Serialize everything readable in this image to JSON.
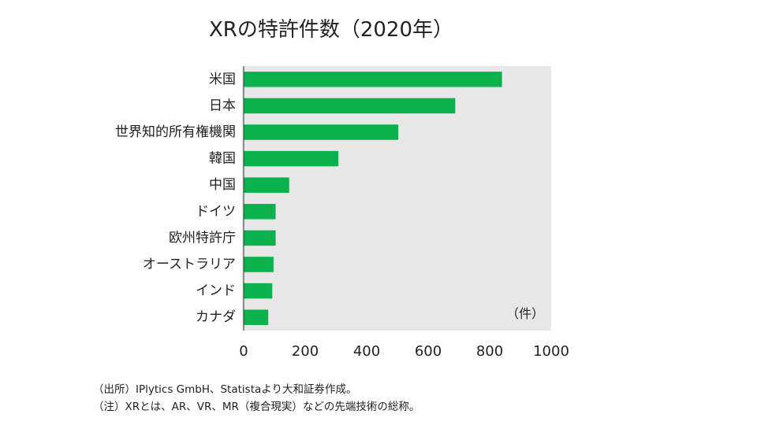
{
  "title": "XRの特許件数（2020年）",
  "notes": {
    "source": "（出所）IPlytics GmbH、Statistaより大和証券作成。",
    "note": "（注）XRとは、AR、VR、MR（複合現実）などの先端技術の総称。"
  },
  "chart_data": {
    "type": "bar",
    "orientation": "horizontal",
    "title": "XRの特許件数（2020年）",
    "unit_label": "（件）",
    "categories": [
      "米国",
      "日本",
      "世界知的所有権機関",
      "韓国",
      "中国",
      "ドイツ",
      "欧州特許庁",
      "オーストラリア",
      "インド",
      "カナダ"
    ],
    "values": [
      840,
      688,
      503,
      308,
      148,
      104,
      104,
      97,
      93,
      80
    ],
    "xlim": [
      0,
      1000
    ],
    "xticks": [
      0,
      200,
      400,
      600,
      800,
      1000
    ],
    "grid": false,
    "legend": "none",
    "colors": {
      "bar": "#0bb14c",
      "plot_background": "#e8e8e8",
      "axis": "#333333"
    }
  }
}
